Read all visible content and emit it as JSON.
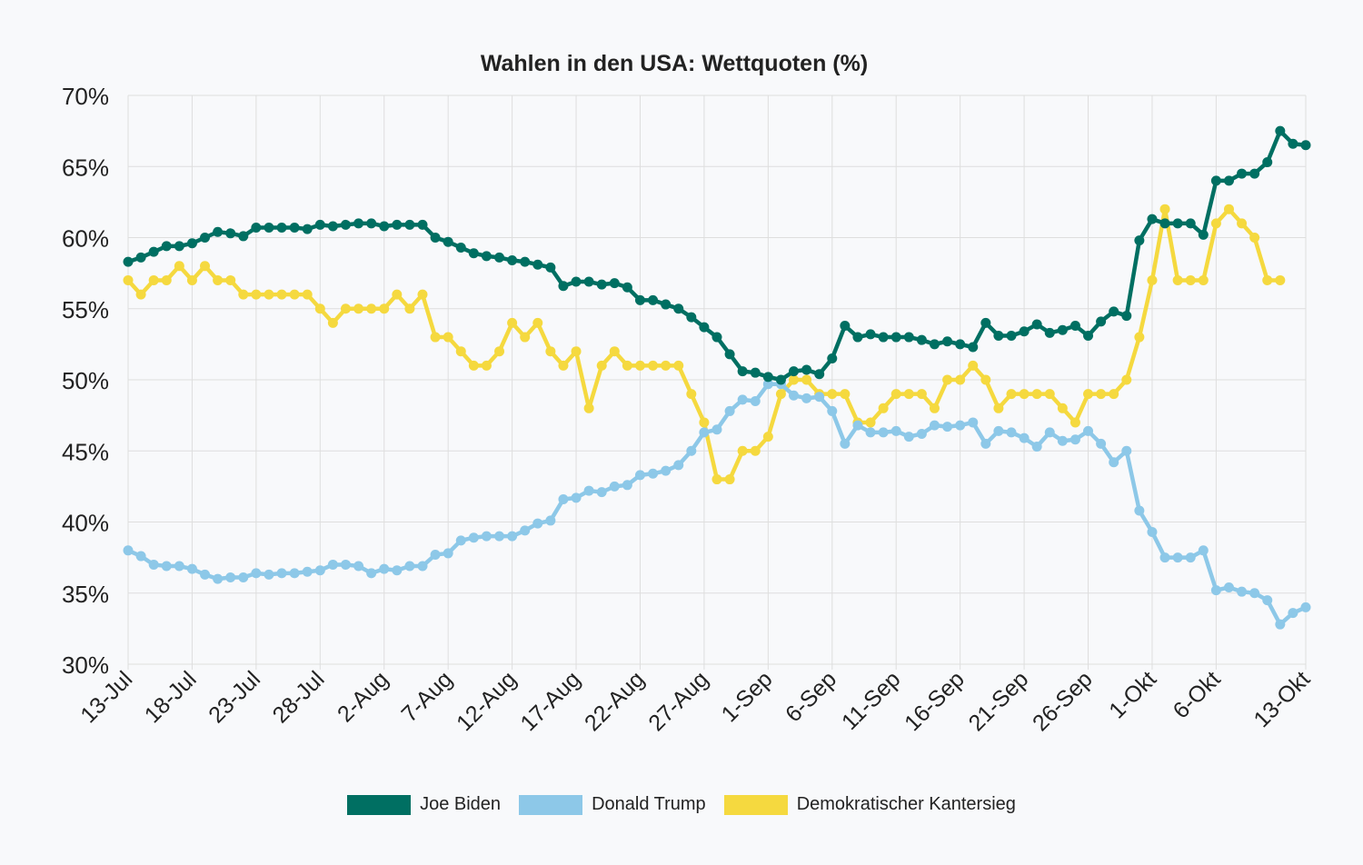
{
  "chart_data": {
    "type": "line",
    "title": "Wahlen in den USA: Wettquoten (%)",
    "xlabel": "",
    "ylabel": "",
    "ylim": [
      30,
      70
    ],
    "y_ticks": [
      "30%",
      "35%",
      "40%",
      "45%",
      "50%",
      "55%",
      "60%",
      "65%",
      "70%"
    ],
    "x_ticks": [
      "13-Jul",
      "18-Jul",
      "23-Jul",
      "28-Jul",
      "2-Aug",
      "7-Aug",
      "12-Aug",
      "17-Aug",
      "22-Aug",
      "27-Aug",
      "1-Sep",
      "6-Sep",
      "11-Sep",
      "16-Sep",
      "21-Sep",
      "26-Sep",
      "1-Okt",
      "6-Okt",
      "13-Okt"
    ],
    "x_tick_days": [
      0,
      5,
      10,
      15,
      20,
      25,
      30,
      35,
      40,
      45,
      50,
      55,
      60,
      65,
      70,
      75,
      80,
      85,
      92
    ],
    "x_range_days": [
      0,
      92
    ],
    "grid": true,
    "legend_position": "bottom",
    "series": [
      {
        "name": "Joe Biden",
        "color": "#006f62",
        "values": [
          58.3,
          58.6,
          59.0,
          59.4,
          59.4,
          59.6,
          60.0,
          60.4,
          60.3,
          60.1,
          60.7,
          60.7,
          60.7,
          60.7,
          60.6,
          60.9,
          60.8,
          60.9,
          61.0,
          61.0,
          60.8,
          60.9,
          60.9,
          60.9,
          60.0,
          59.7,
          59.3,
          58.9,
          58.7,
          58.6,
          58.4,
          58.3,
          58.1,
          57.9,
          56.6,
          56.9,
          56.9,
          56.7,
          56.8,
          56.5,
          55.6,
          55.6,
          55.3,
          55.0,
          54.4,
          53.7,
          53.0,
          51.8,
          50.6,
          50.5,
          50.2,
          50.0,
          50.6,
          50.7,
          50.4,
          51.5,
          53.8,
          53.0,
          53.2,
          53.0,
          53.0,
          53.0,
          52.8,
          52.5,
          52.7,
          52.5,
          52.3,
          54.0,
          53.1,
          53.1,
          53.4,
          53.9,
          53.3,
          53.5,
          53.8,
          53.1,
          54.1,
          54.8,
          54.5,
          59.8,
          61.3,
          61.0,
          61.0,
          61.0,
          60.2,
          64.0,
          64.0,
          64.5,
          64.5,
          65.3,
          67.5,
          66.6,
          66.5
        ]
      },
      {
        "name": "Donald Trump",
        "color": "#8dc8e8",
        "values": [
          38.0,
          37.6,
          37.0,
          36.9,
          36.9,
          36.7,
          36.3,
          36.0,
          36.1,
          36.1,
          36.4,
          36.3,
          36.4,
          36.4,
          36.5,
          36.6,
          37.0,
          37.0,
          36.9,
          36.4,
          36.7,
          36.6,
          36.9,
          36.9,
          37.7,
          37.8,
          38.7,
          38.9,
          39.0,
          39.0,
          39.0,
          39.4,
          39.9,
          40.1,
          41.6,
          41.7,
          42.2,
          42.1,
          42.5,
          42.6,
          43.3,
          43.4,
          43.6,
          44.0,
          45.0,
          46.3,
          46.5,
          47.8,
          48.6,
          48.5,
          49.7,
          49.7,
          48.9,
          48.7,
          48.8,
          47.8,
          45.5,
          46.8,
          46.3,
          46.3,
          46.4,
          46.0,
          46.2,
          46.8,
          46.7,
          46.8,
          47.0,
          45.5,
          46.4,
          46.3,
          45.9,
          45.3,
          46.3,
          45.7,
          45.8,
          46.4,
          45.5,
          44.2,
          45.0,
          40.8,
          39.3,
          37.5,
          37.5,
          37.5,
          38.0,
          35.2,
          35.4,
          35.1,
          35.0,
          34.5,
          32.8,
          33.6,
          34.0
        ]
      },
      {
        "name": "Demokratischer Kantersieg",
        "color": "#f5d93f",
        "values": [
          57,
          56,
          57,
          57,
          58,
          57,
          58,
          57,
          57,
          56,
          56,
          56,
          56,
          56,
          56,
          55,
          54,
          55,
          55,
          55,
          55,
          56,
          55,
          56,
          53,
          53,
          52,
          51,
          51,
          52,
          54,
          53,
          54,
          52,
          51,
          52,
          48,
          51,
          52,
          51,
          51,
          51,
          51,
          51,
          49,
          47,
          43,
          43,
          45,
          45,
          46,
          49,
          50,
          50,
          49,
          49,
          49,
          47,
          47,
          48,
          49,
          49,
          49,
          48,
          50,
          50,
          51,
          50,
          48,
          49,
          49,
          49,
          49,
          48,
          47,
          49,
          49,
          49,
          50,
          53,
          57,
          62,
          57,
          57,
          57,
          61,
          62,
          61,
          60,
          57,
          57,
          null,
          null
        ]
      }
    ]
  }
}
